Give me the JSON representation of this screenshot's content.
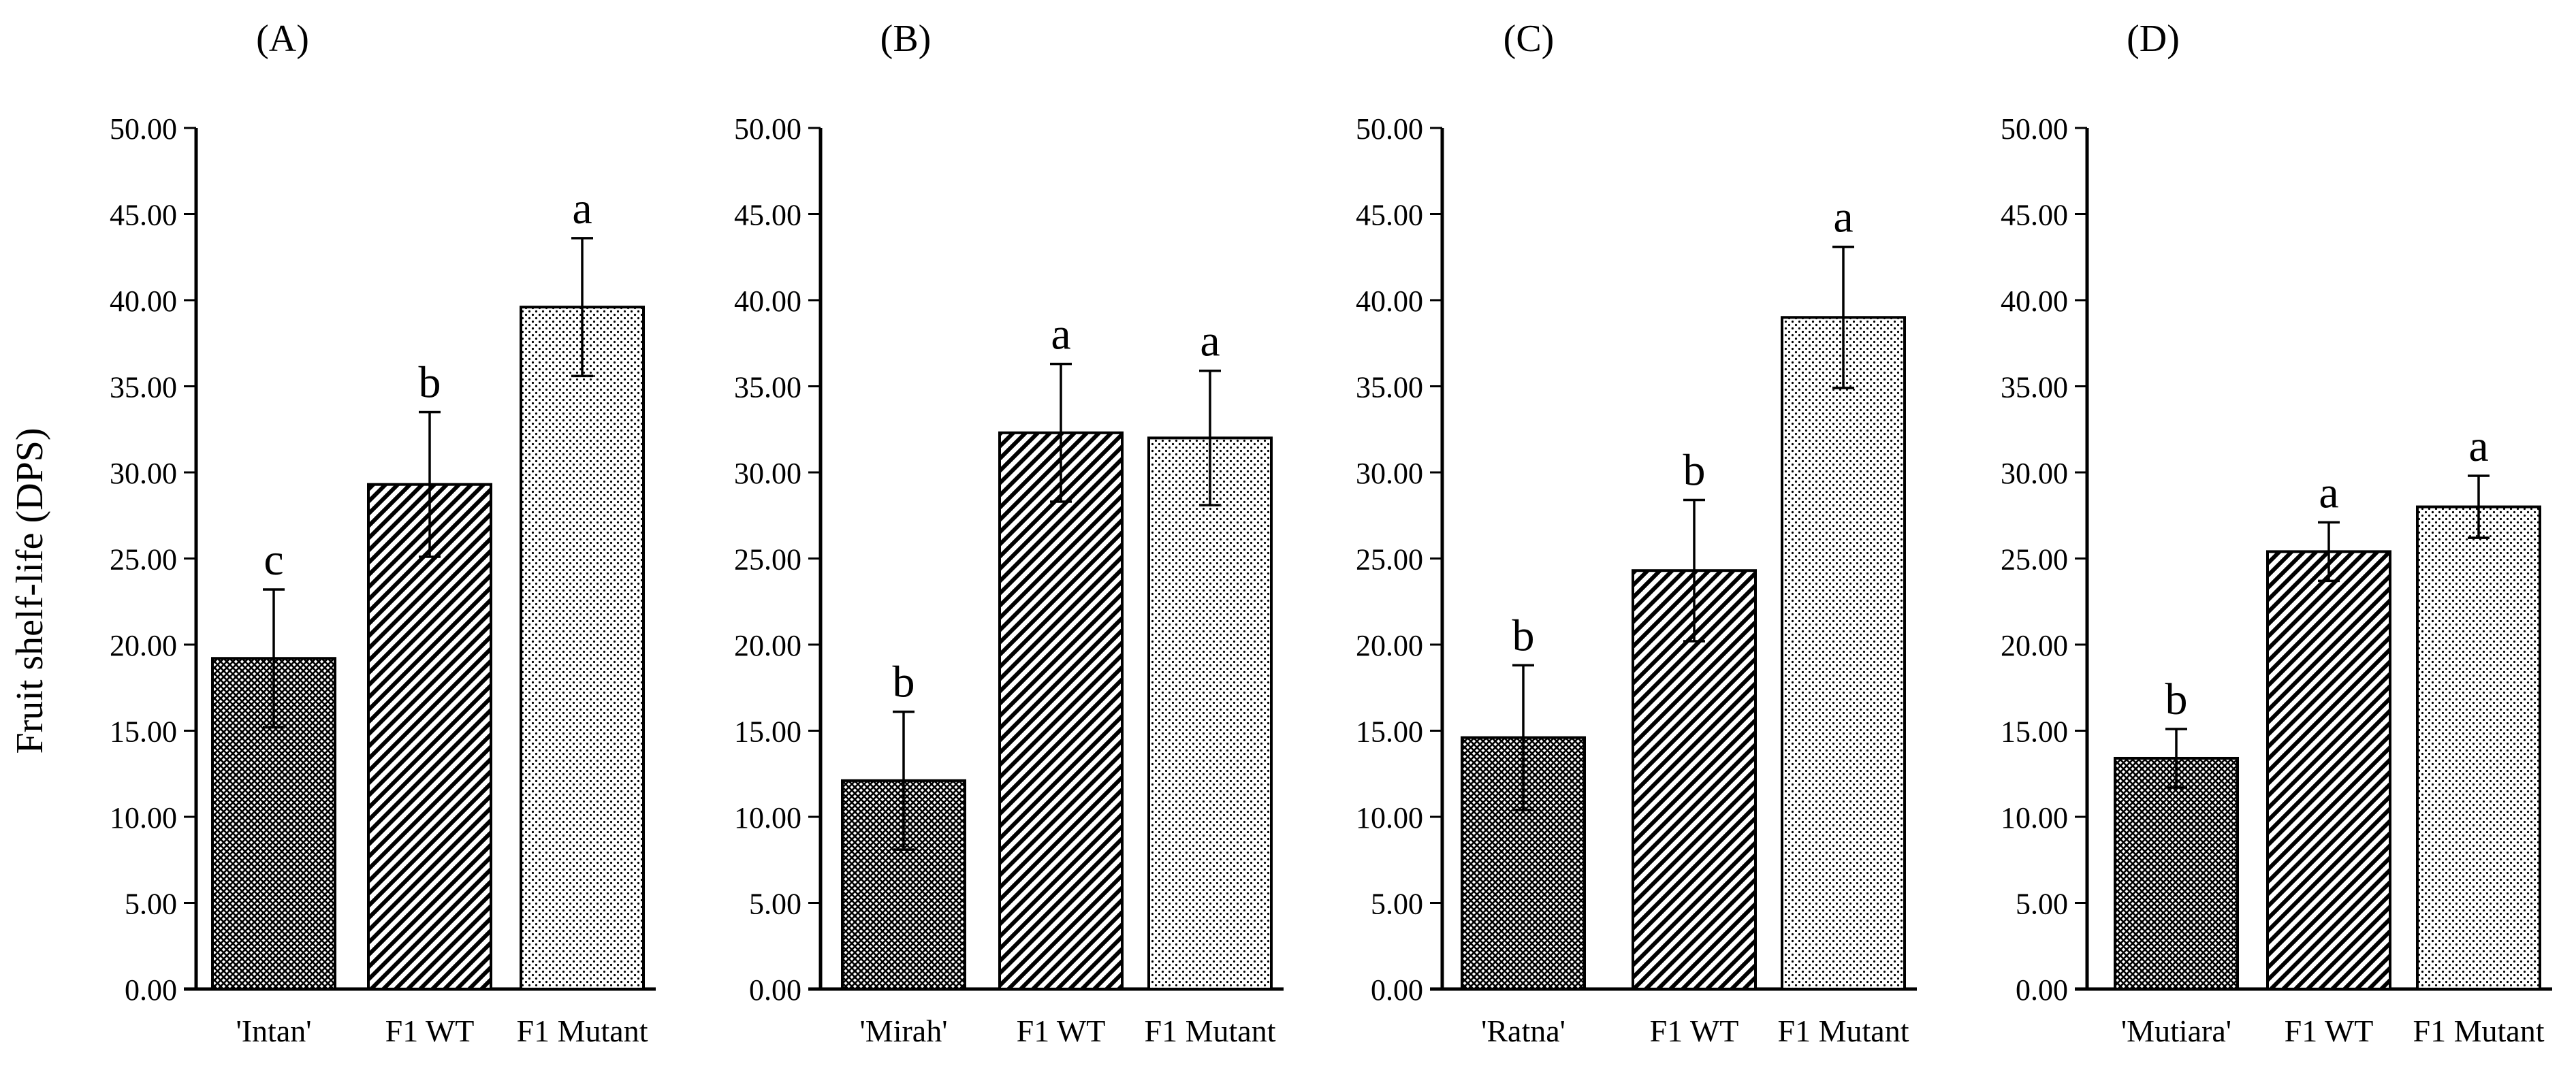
{
  "ylabel": "Fruit shelf-life (DPS)",
  "ylim": [
    0,
    50
  ],
  "yticks": [
    "0.00",
    "5.00",
    "10.00",
    "15.00",
    "20.00",
    "25.00",
    "30.00",
    "35.00",
    "40.00",
    "45.00",
    "50.00"
  ],
  "chart_data": [
    {
      "type": "bar",
      "title": "(A)",
      "categories": [
        "'Intan'",
        "F1 WT",
        "F1 Mutant"
      ],
      "values": [
        19.2,
        29.3,
        39.6
      ],
      "errors": [
        4.0,
        4.2,
        4.0
      ],
      "letters": [
        "c",
        "b",
        "a"
      ],
      "ylabel": "Fruit shelf-life (DPS)",
      "ylim": [
        0,
        50
      ]
    },
    {
      "type": "bar",
      "title": "(B)",
      "categories": [
        "'Mirah'",
        "F1 WT",
        "F1 Mutant"
      ],
      "values": [
        12.1,
        32.3,
        32.0
      ],
      "errors": [
        4.0,
        4.0,
        3.9
      ],
      "letters": [
        "b",
        "a",
        "a"
      ],
      "ylabel": "",
      "ylim": [
        0,
        50
      ]
    },
    {
      "type": "bar",
      "title": "(C)",
      "categories": [
        "'Ratna'",
        "F1 WT",
        "F1 Mutant"
      ],
      "values": [
        14.6,
        24.3,
        39.0
      ],
      "errors": [
        4.2,
        4.1,
        4.1
      ],
      "letters": [
        "b",
        "b",
        "a"
      ],
      "ylabel": "",
      "ylim": [
        0,
        50
      ]
    },
    {
      "type": "bar",
      "title": "(D)",
      "categories": [
        "'Mutiara'",
        "F1 WT",
        "F1 Mutant"
      ],
      "values": [
        13.4,
        25.4,
        28.0
      ],
      "errors": [
        1.7,
        1.7,
        1.8
      ],
      "letters": [
        "b",
        "a",
        "a"
      ],
      "ylabel": "",
      "ylim": [
        0,
        50
      ]
    }
  ]
}
